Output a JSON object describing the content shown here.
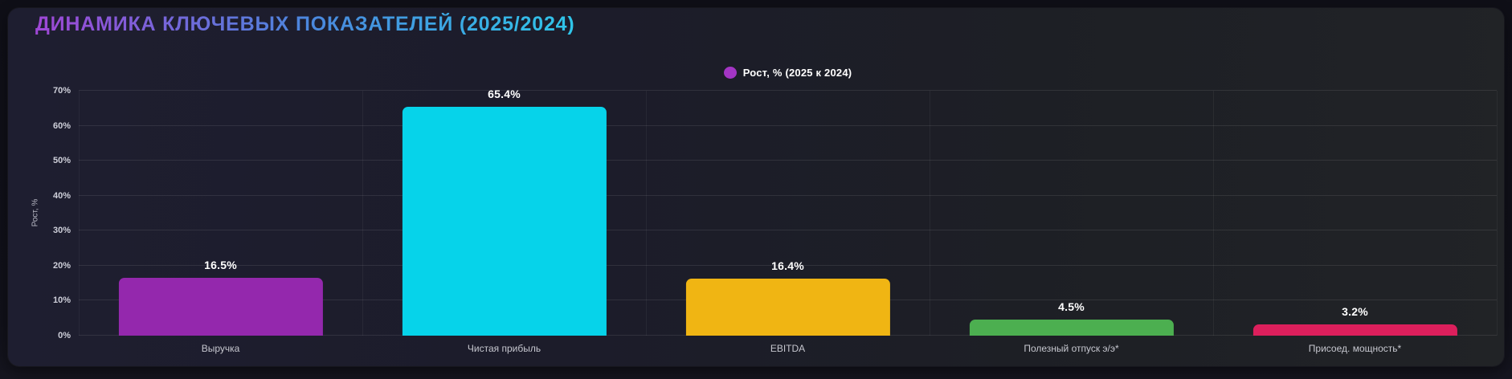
{
  "theme": {
    "page_bg": "#11111a",
    "card_bg_left": "#1e1e30",
    "card_bg_right": "#212326",
    "title_gradient": [
      "#9f47d6",
      "#4b86dd",
      "#2fc5e9"
    ],
    "grid_color": "rgba(255,255,255,0.09)",
    "value_label_color": "#ffffff",
    "tick_label_color": "#cfd0da"
  },
  "chart_data": {
    "type": "bar",
    "title": "ДИНАМИКА КЛЮЧЕВЫХ ПОКАЗАТЕЛЕЙ (2025/2024)",
    "ylabel": "Рост, %",
    "xlabel": "",
    "ylim": [
      0,
      70
    ],
    "yticks": [
      "0%",
      "10%",
      "20%",
      "30%",
      "40%",
      "50%",
      "60%",
      "70%"
    ],
    "grid": true,
    "legend_position": "top-center",
    "legend": [
      {
        "label": "Рост, % (2025 к 2024)",
        "color": "#a335c4"
      }
    ],
    "categories": [
      "Выручка",
      "Чистая прибыль",
      "EBITDA",
      "Полезный отпуск э/э*",
      "Присоед. мощность*"
    ],
    "series": [
      {
        "name": "Рост, % (2025 к 2024)",
        "values": [
          16.5,
          65.4,
          16.4,
          4.5,
          3.2
        ]
      }
    ],
    "value_labels": [
      "16.5%",
      "65.4%",
      "16.4%",
      "4.5%",
      "3.2%"
    ],
    "bar_colors": [
      "#9428ad",
      "#06d3ea",
      "#f0b513",
      "#4caf50",
      "#dc1f5c"
    ]
  }
}
